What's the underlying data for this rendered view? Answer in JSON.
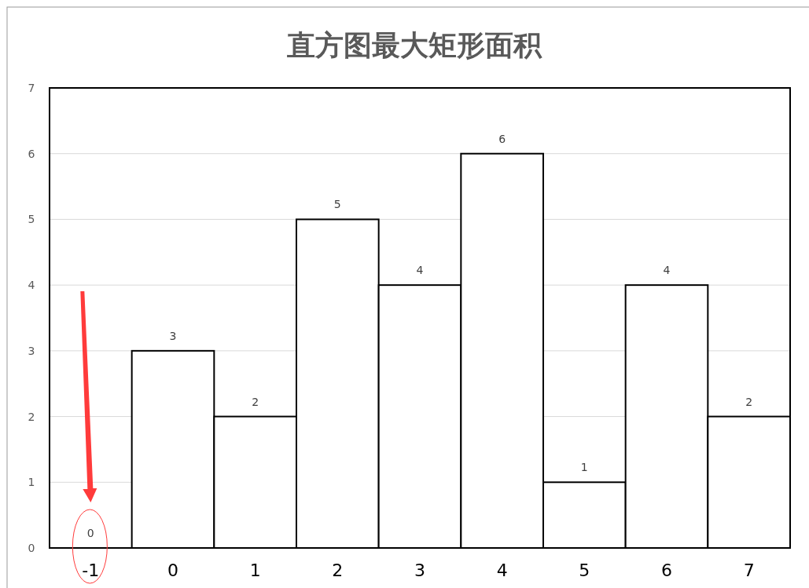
{
  "chart_data": {
    "type": "bar",
    "title": "直方图最大矩形面积",
    "categories": [
      "-1",
      "0",
      "1",
      "2",
      "3",
      "4",
      "5",
      "6",
      "7"
    ],
    "values": [
      0,
      3,
      2,
      5,
      4,
      6,
      1,
      4,
      2
    ],
    "color": "#ffffff",
    "ylim": [
      0,
      7
    ],
    "yticks": [
      0,
      1,
      2,
      3,
      4,
      5,
      6,
      7
    ],
    "grid": "y",
    "data_labels": true
  }
}
